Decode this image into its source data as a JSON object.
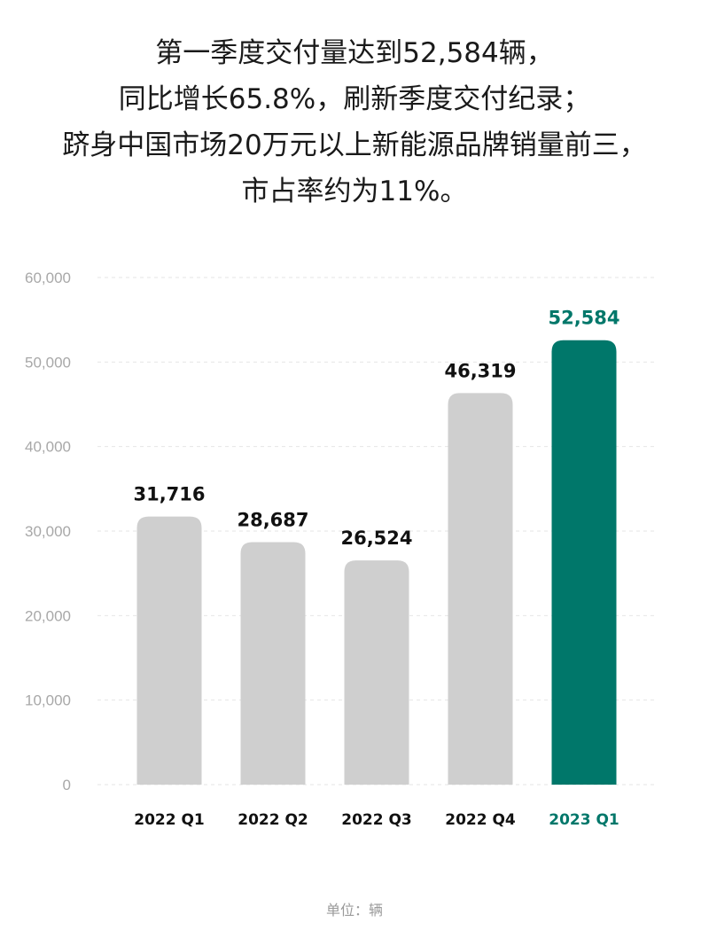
{
  "headline": {
    "line1": "第一季度交付量达到52,584辆，",
    "line2": "同比增长65.8%，刷新季度交付纪录；",
    "line3": "跻身中国市场20万元以上新能源品牌销量前三，",
    "line4": "市占率约为11%。"
  },
  "unit_note": "单位：辆",
  "colors": {
    "bar_default": "#cfcfcf",
    "bar_highlight": "#00776a",
    "label_default": "#111111",
    "label_highlight": "#00776a",
    "tick_text": "#a8a8a8",
    "grid": "#e6e6e6"
  },
  "chart_data": {
    "type": "bar",
    "categories": [
      "2022 Q1",
      "2022 Q2",
      "2022 Q3",
      "2022 Q4",
      "2023 Q1"
    ],
    "values": [
      31716,
      28687,
      26524,
      46319,
      52584
    ],
    "value_labels": [
      "31,716",
      "28,687",
      "26,524",
      "46,319",
      "52,584"
    ],
    "highlight_index": 4,
    "ylim": [
      0,
      60000
    ],
    "yticks": [
      0,
      10000,
      20000,
      30000,
      40000,
      50000,
      60000
    ],
    "ytick_labels": [
      "0",
      "10,000",
      "20,000",
      "30,000",
      "40,000",
      "50,000",
      "60,000"
    ],
    "grid": true,
    "grid_style": "dashed",
    "title": "",
    "xlabel": "",
    "ylabel": ""
  }
}
